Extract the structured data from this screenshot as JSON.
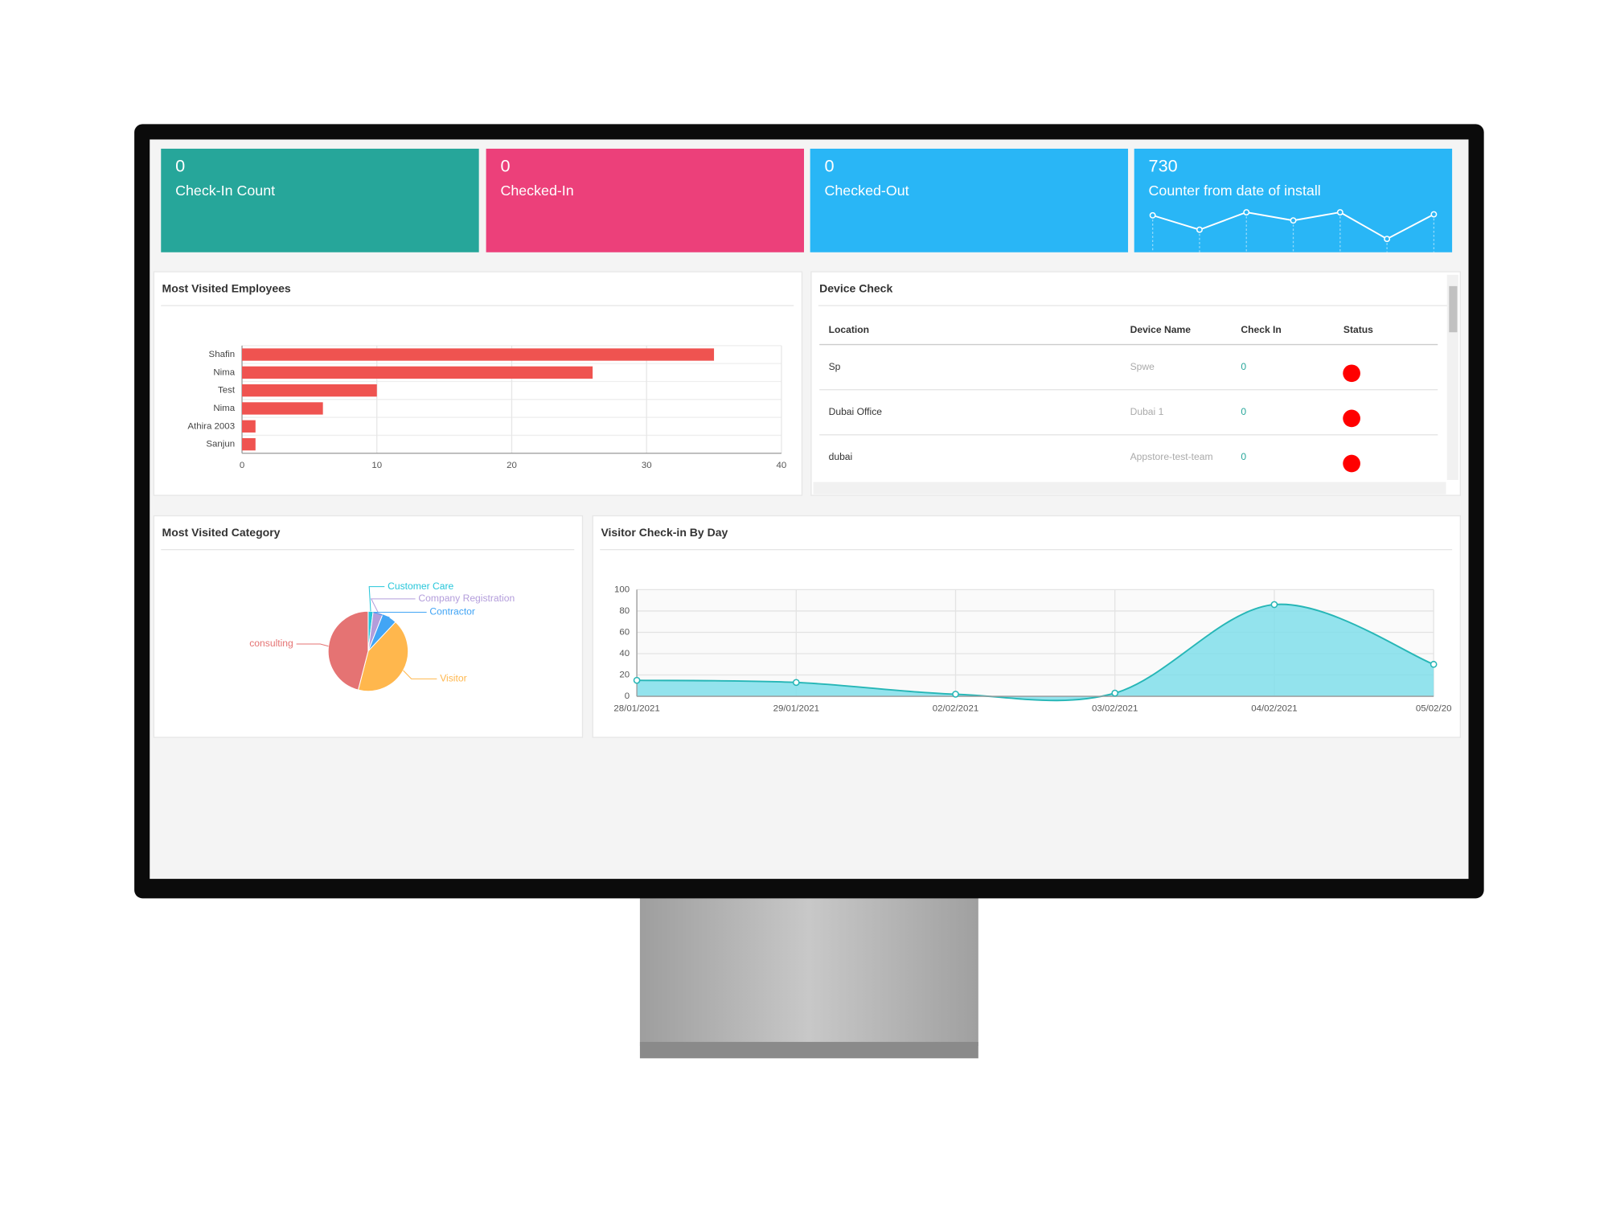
{
  "stat_cards": [
    {
      "value": 0,
      "label": "Check-In Count",
      "color": "#26a69a"
    },
    {
      "value": 0,
      "label": "Checked-In",
      "color": "#ec407a"
    },
    {
      "value": 0,
      "label": "Checked-Out",
      "color": "#29b6f6"
    },
    {
      "value": 730,
      "label": "Counter from date of install",
      "color": "#29b6f6"
    }
  ],
  "sparkline": {
    "type": "line",
    "values": [
      30,
      16,
      33,
      25,
      33,
      7,
      31
    ],
    "color": "#ffffff"
  },
  "employees_chart": {
    "type": "bar",
    "title": "Most Visited Employees",
    "categories": [
      "Shafin",
      "Nima",
      "Test",
      "Nima",
      "Athira 2003",
      "Sanjun"
    ],
    "values": [
      35,
      26,
      10,
      6,
      1,
      1
    ],
    "xlim": [
      0,
      40
    ],
    "xticks": [
      0,
      10,
      20,
      30,
      40
    ],
    "color": "#ef5350",
    "grid": true
  },
  "device_check": {
    "title": "Device Check",
    "columns": [
      "Location",
      "Device Name",
      "Check In",
      "Status"
    ],
    "rows": [
      [
        "Sp",
        "Spwe",
        0
      ],
      [
        "Dubai Office",
        "Dubai 1",
        0
      ],
      [
        "dubai",
        "Appstore-test-team",
        0
      ]
    ],
    "status_color": "#ff0000"
  },
  "category_chart": {
    "type": "pie",
    "title": "Most Visited Category",
    "categories": [
      "Customer Care",
      "Company Registration",
      "Contractor",
      "Visitor",
      "consulting"
    ],
    "values": [
      2,
      4,
      6,
      42,
      46
    ],
    "colors": [
      "#26c6da",
      "#b39ddb",
      "#42a5f5",
      "#ffb74d",
      "#e57373"
    ]
  },
  "visitor_chart": {
    "type": "area",
    "title": "Visitor Check-in By Day",
    "x": [
      "28/01/2021",
      "29/01/2021",
      "02/02/2021",
      "03/02/2021",
      "04/02/2021",
      "05/02/20"
    ],
    "values": [
      15,
      13,
      2,
      3,
      86,
      30
    ],
    "ylim": [
      0,
      100
    ],
    "yticks": [
      0,
      20,
      40,
      60,
      80,
      100
    ],
    "color": "#26b6b6",
    "fill": "#80deea",
    "grid": true
  }
}
